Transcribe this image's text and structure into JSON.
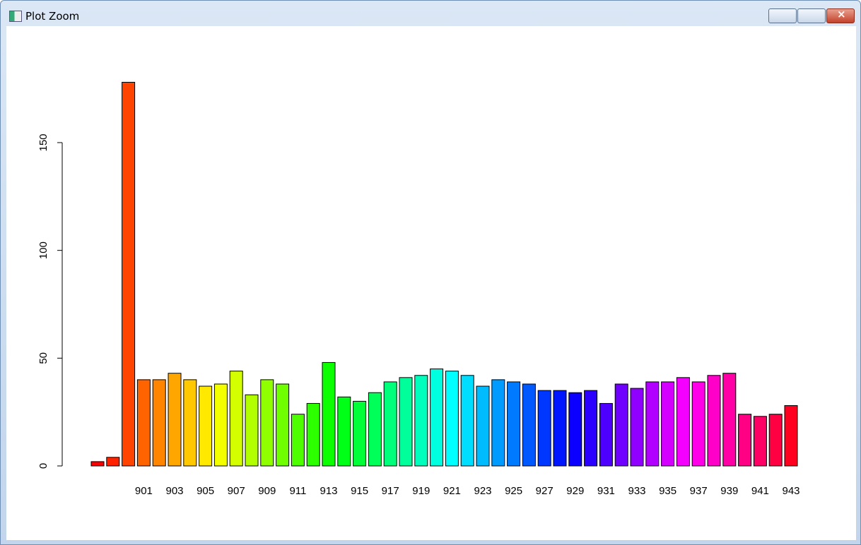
{
  "window": {
    "title": "Plot Zoom"
  },
  "chart_data": {
    "type": "bar",
    "categories": [
      null,
      null,
      null,
      "901",
      null,
      "903",
      null,
      "905",
      null,
      "907",
      null,
      "909",
      null,
      "911",
      null,
      "913",
      null,
      "915",
      null,
      "917",
      null,
      "919",
      null,
      "921",
      null,
      "923",
      null,
      "925",
      null,
      "927",
      null,
      "929",
      null,
      "931",
      null,
      "933",
      null,
      "935",
      null,
      "937",
      null,
      "939",
      null,
      "941",
      null,
      "943"
    ],
    "values": [
      2,
      4,
      178,
      40,
      40,
      43,
      40,
      37,
      38,
      44,
      33,
      40,
      38,
      24,
      29,
      48,
      32,
      30,
      34,
      39,
      41,
      42,
      45,
      44,
      42,
      37,
      40,
      39,
      38,
      35,
      35,
      34,
      35,
      29,
      38,
      36,
      39,
      39,
      41,
      39,
      42,
      43,
      24,
      23,
      24,
      28
    ],
    "colors": "rainbow",
    "ylim": [
      0,
      185
    ],
    "yticks": [
      0,
      50,
      100,
      150
    ],
    "grid": false
  }
}
